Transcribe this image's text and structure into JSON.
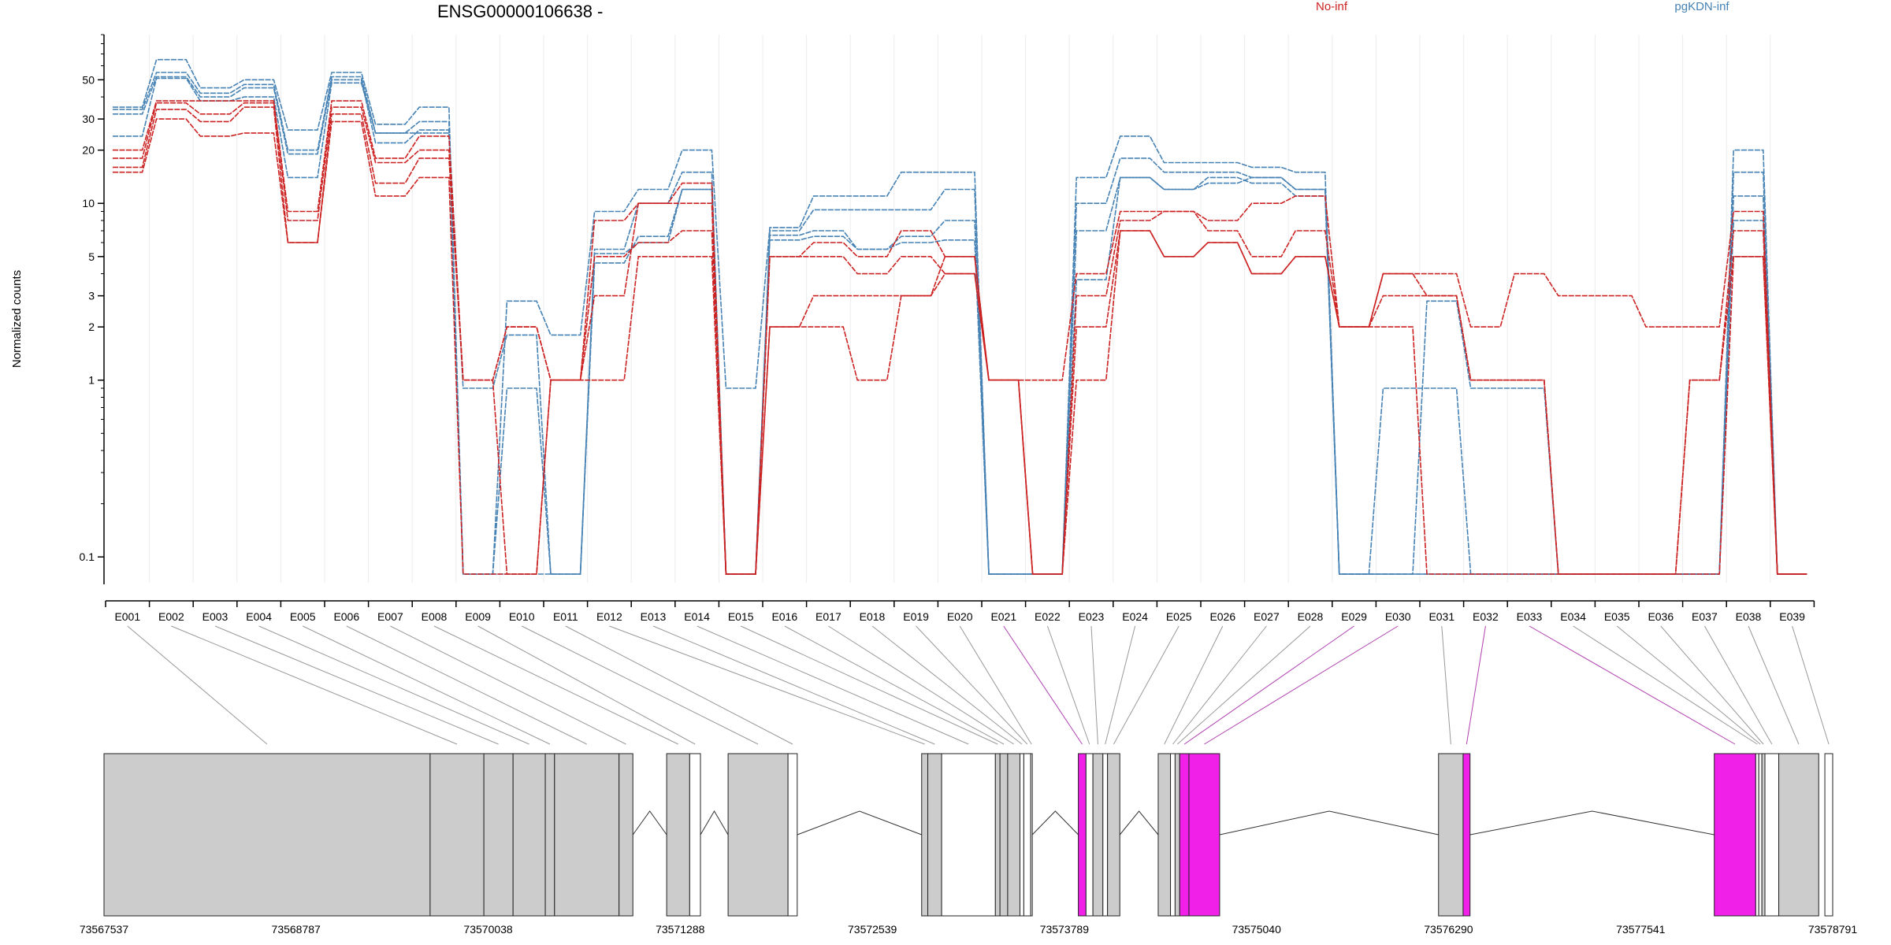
{
  "chart_data": {
    "type": "line",
    "title": "ENSG00000106638 -",
    "ylabel": "Normalized counts",
    "y_scale": "log",
    "y_ticks": [
      0.1,
      1,
      2,
      3,
      5,
      10,
      20,
      30,
      50
    ],
    "ylim": [
      0.07,
      90
    ],
    "grid": "vertical-light",
    "legend": [
      {
        "label": "No-inf",
        "color": "#cc2222"
      },
      {
        "label": "pgKDN-inf",
        "color": "#4682b4"
      }
    ],
    "categories": [
      "E001",
      "E002",
      "E003",
      "E004",
      "E005",
      "E006",
      "E007",
      "E008",
      "E009",
      "E010",
      "E011",
      "E012",
      "E013",
      "E014",
      "E015",
      "E016",
      "E017",
      "E018",
      "E019",
      "E020",
      "E021",
      "E022",
      "E023",
      "E024",
      "E025",
      "E026",
      "E027",
      "E028",
      "E029",
      "E030",
      "E031",
      "E032",
      "E033",
      "E034",
      "E035",
      "E036",
      "E037",
      "E038",
      "E039"
    ],
    "series": [
      {
        "group": "pgKDN-inf",
        "values": [
          35,
          65,
          45,
          50,
          26,
          55,
          28,
          35,
          0.08,
          2.8,
          1.8,
          9,
          12,
          20,
          0.9,
          7.3,
          11,
          11,
          15,
          15,
          0.08,
          0.08,
          14,
          24,
          17,
          17,
          16,
          15,
          0.08,
          0.08,
          0.08,
          0.08,
          0.08,
          0.08,
          0.08,
          0.08,
          0.08,
          20,
          0.08
        ]
      },
      {
        "group": "pgKDN-inf",
        "values": [
          34,
          55,
          42,
          47,
          20,
          52,
          25,
          29,
          0.08,
          0.9,
          0.08,
          5.5,
          10,
          15,
          0.08,
          7,
          9.2,
          9.2,
          9.2,
          12,
          0.08,
          0.08,
          10,
          18,
          15,
          15,
          14,
          12,
          0.08,
          0.9,
          0.9,
          0.08,
          0.08,
          0.08,
          0.08,
          0.08,
          0.08,
          15,
          0.08
        ]
      },
      {
        "group": "pgKDN-inf",
        "values": [
          32,
          52,
          40,
          45,
          19,
          50,
          22,
          26,
          0.9,
          1.8,
          0.08,
          4.6,
          6.5,
          12,
          0.08,
          6.6,
          7,
          5.5,
          6.5,
          8,
          0.08,
          0.08,
          7,
          14,
          12,
          14,
          13,
          11,
          0.08,
          0.08,
          2.8,
          0.9,
          0.9,
          0.08,
          0.08,
          0.08,
          0.08,
          11,
          0.08
        ]
      },
      {
        "group": "pgKDN-inf",
        "values": [
          24,
          51,
          38,
          40,
          14,
          48,
          25,
          25,
          0.08,
          0.08,
          0.08,
          5.2,
          6,
          12,
          0.08,
          6.2,
          6.5,
          5.5,
          6,
          6.2,
          0.08,
          0.08,
          3.7,
          14,
          12,
          13,
          14,
          12,
          0.08,
          0.08,
          0.08,
          0.08,
          0.08,
          0.08,
          0.08,
          0.08,
          0.08,
          8,
          0.08
        ]
      },
      {
        "group": "No-inf",
        "values": [
          20,
          38,
          38,
          38,
          9,
          38,
          18,
          24,
          1,
          2,
          1,
          8,
          10,
          13,
          0.08,
          5,
          6,
          5,
          7,
          5,
          1,
          1,
          4,
          9,
          9,
          8,
          10,
          11,
          2,
          4,
          4,
          2,
          4,
          3,
          3,
          2,
          2,
          9,
          0.08
        ]
      },
      {
        "group": "No-inf",
        "values": [
          18,
          37,
          32,
          37,
          8,
          35,
          17,
          20,
          1,
          2,
          1,
          3,
          10,
          10,
          0.08,
          2,
          3,
          3,
          3,
          5,
          1,
          0.08,
          3,
          8,
          9,
          7,
          5,
          7,
          2,
          3,
          3,
          1,
          1,
          0.08,
          0.08,
          0.08,
          1,
          7,
          0.08
        ]
      },
      {
        "group": "No-inf",
        "values": [
          16,
          34,
          29,
          35,
          6,
          32,
          13,
          18,
          1,
          0.08,
          1,
          5,
          6,
          7,
          0.08,
          5,
          5,
          4,
          5,
          4,
          1,
          0.08,
          2,
          7,
          5,
          6,
          4,
          5,
          2,
          2,
          0.08,
          0.08,
          0.08,
          0.08,
          0.08,
          0.08,
          0.08,
          5,
          0.08
        ]
      },
      {
        "group": "No-inf",
        "values": [
          15,
          30,
          24,
          25,
          6,
          29,
          11,
          14,
          0.08,
          0.08,
          1,
          1,
          5,
          5,
          0.08,
          2,
          2,
          1,
          3,
          4,
          1,
          0.08,
          1,
          7,
          5,
          6,
          4,
          5,
          2,
          4,
          3,
          1,
          1,
          0.08,
          0.08,
          0.08,
          1,
          5,
          0.08
        ]
      }
    ],
    "genomic_axis": {
      "start": 73567537,
      "end": 73578791,
      "labels": [
        73567537,
        73568787,
        73570038,
        73571288,
        73572539,
        73573789,
        73575040,
        73576290,
        73577541,
        73578791
      ]
    },
    "exon_model": {
      "colors": {
        "gray": "#cccccc",
        "highlight": "#f020e8",
        "empty": "#ffffff"
      },
      "exons": [
        {
          "id": "E001",
          "start": 73567537,
          "end": 73569660,
          "fill": "gray"
        },
        {
          "id": "E002",
          "start": 73569660,
          "end": 73570010,
          "fill": "gray"
        },
        {
          "id": "E003",
          "start": 73570010,
          "end": 73570200,
          "fill": "gray"
        },
        {
          "id": "E004",
          "start": 73570200,
          "end": 73570410,
          "fill": "gray"
        },
        {
          "id": "E005",
          "start": 73570410,
          "end": 73570470,
          "fill": "gray"
        },
        {
          "id": "E006",
          "start": 73570470,
          "end": 73570890,
          "fill": "gray"
        },
        {
          "id": "E007",
          "start": 73570890,
          "end": 73570980,
          "fill": "gray"
        },
        {
          "id": "E008",
          "start": 73571200,
          "end": 73571350,
          "fill": "gray"
        },
        {
          "id": "E009",
          "start": 73571350,
          "end": 73571420,
          "fill": "empty"
        },
        {
          "id": "E010",
          "start": 73571600,
          "end": 73571990,
          "fill": "gray"
        },
        {
          "id": "E011",
          "start": 73571990,
          "end": 73572050,
          "fill": "empty"
        },
        {
          "id": "E012",
          "start": 73572860,
          "end": 73572900,
          "fill": "gray"
        },
        {
          "id": "E013",
          "start": 73572900,
          "end": 73572990,
          "fill": "gray"
        },
        {
          "id": "E014",
          "start": 73572990,
          "end": 73573340,
          "fill": "empty"
        },
        {
          "id": "E015",
          "start": 73573340,
          "end": 73573370,
          "fill": "gray"
        },
        {
          "id": "E016",
          "start": 73573370,
          "end": 73573420,
          "fill": "gray"
        },
        {
          "id": "E017",
          "start": 73573420,
          "end": 73573500,
          "fill": "gray"
        },
        {
          "id": "E018",
          "start": 73573500,
          "end": 73573525,
          "fill": "empty"
        },
        {
          "id": "E019",
          "start": 73573525,
          "end": 73573570,
          "fill": "empty"
        },
        {
          "id": "E020",
          "start": 73573570,
          "end": 73573580,
          "fill": "empty"
        },
        {
          "id": "E021",
          "start": 73573880,
          "end": 73573930,
          "fill": "highlight"
        },
        {
          "id": "E022",
          "start": 73573930,
          "end": 73573975,
          "fill": "empty"
        },
        {
          "id": "E023",
          "start": 73573975,
          "end": 73574040,
          "fill": "gray"
        },
        {
          "id": "E024",
          "start": 73574040,
          "end": 73574070,
          "fill": "empty"
        },
        {
          "id": "E025",
          "start": 73574070,
          "end": 73574150,
          "fill": "gray"
        },
        {
          "id": "E026",
          "start": 73574400,
          "end": 73574480,
          "fill": "gray"
        },
        {
          "id": "E027",
          "start": 73574480,
          "end": 73574510,
          "fill": "empty"
        },
        {
          "id": "E028",
          "start": 73574510,
          "end": 73574540,
          "fill": "gray"
        },
        {
          "id": "E029",
          "start": 73574540,
          "end": 73574600,
          "fill": "highlight"
        },
        {
          "id": "E030",
          "start": 73574600,
          "end": 73574800,
          "fill": "highlight"
        },
        {
          "id": "E031",
          "start": 73576225,
          "end": 73576385,
          "fill": "gray"
        },
        {
          "id": "E032",
          "start": 73576385,
          "end": 73576430,
          "fill": "highlight"
        },
        {
          "id": "E033",
          "start": 73578020,
          "end": 73578290,
          "fill": "highlight"
        },
        {
          "id": "E034",
          "start": 73578290,
          "end": 73578310,
          "fill": "empty"
        },
        {
          "id": "E035",
          "start": 73578310,
          "end": 73578330,
          "fill": "empty"
        },
        {
          "id": "E036",
          "start": 73578330,
          "end": 73578350,
          "fill": "gray"
        },
        {
          "id": "E037",
          "start": 73578350,
          "end": 73578440,
          "fill": "empty"
        },
        {
          "id": "E038",
          "start": 73578440,
          "end": 73578700,
          "fill": "gray"
        },
        {
          "id": "E039",
          "start": 73578740,
          "end": 73578791,
          "fill": "empty"
        }
      ]
    }
  }
}
